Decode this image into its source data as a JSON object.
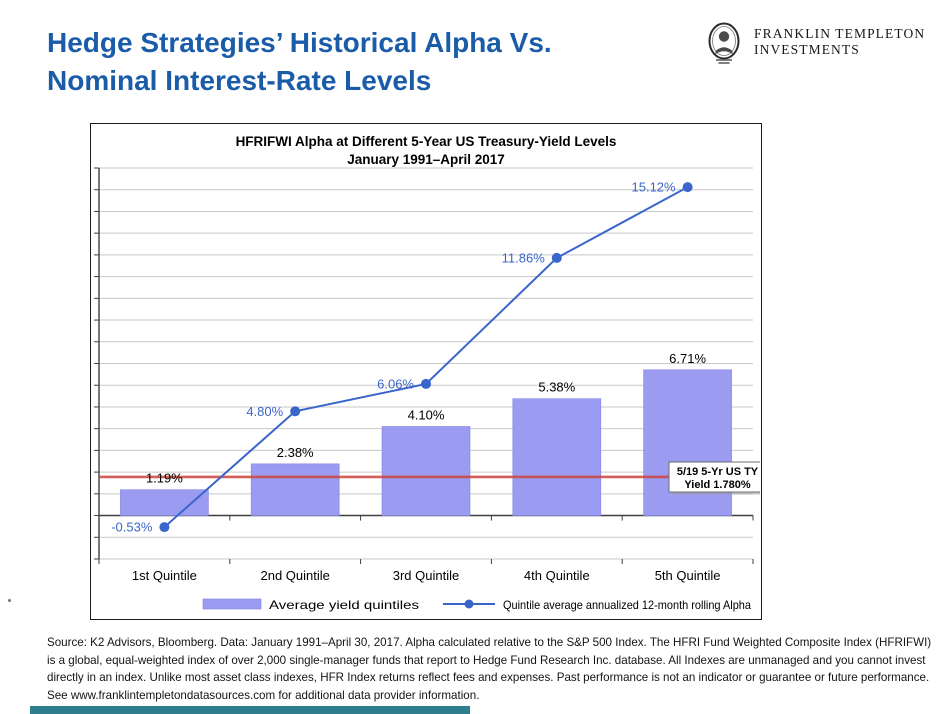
{
  "header": {
    "title_line1": "Hedge Strategies’ Historical Alpha Vs.",
    "title_line2": "Nominal Interest-Rate Levels",
    "logo_line1": "FRANKLIN TEMPLETON",
    "logo_line2": "INVESTMENTS"
  },
  "chart_data": {
    "type": "bar+line combo",
    "title": "HFRIFWI Alpha at Different 5-Year US Treasury-Yield Levels",
    "subtitle": "January 1991–April 2017",
    "categories": [
      "1st Quintile",
      "2nd Quintile",
      "3rd Quintile",
      "4th Quintile",
      "5th Quintile"
    ],
    "series": [
      {
        "name": "Average yield quintiles",
        "type": "bar",
        "color": "#9b9bf2",
        "values": [
          1.19,
          2.38,
          4.1,
          5.38,
          6.71
        ],
        "labels": [
          "1.19%",
          "2.38%",
          "4.10%",
          "5.38%",
          "6.71%"
        ]
      },
      {
        "name": "Quintile average annualized 12-month rolling Alpha",
        "type": "line",
        "color": "#3a66cc",
        "values": [
          -0.53,
          4.8,
          6.06,
          11.86,
          15.12
        ],
        "labels": [
          "-0.53%",
          "4.80%",
          "6.06%",
          "11.86%",
          "15.12%"
        ]
      }
    ],
    "reference_line": {
      "value": 1.78,
      "color": "#ce4a44",
      "label_line1": "5/19 5-Yr US TY",
      "label_line2": "Yield 1.780%"
    },
    "xlabel": "",
    "ylabel": "",
    "ylim": [
      -2,
      16
    ],
    "grid_step": 1,
    "grid": true,
    "legend_position": "bottom",
    "gridline_color": "#c9c9c9",
    "axis_color": "#3f3f3f"
  },
  "footer": {
    "source_text": "Source: K2 Advisors, Bloomberg. Data: January 1991–April 30, 2017. Alpha calculated relative to the S&P 500 Index. The HFRI Fund Weighted Composite Index (HFRIFWI) is a global, equal-weighted index of over 2,000 single-manager funds that report to Hedge Fund Research Inc. database. All Indexes are unmanaged and you cannot invest directly in an index. Unlike most asset class indexes, HFR Index returns reflect fees and expenses. Past performance is not an indicator or guarantee or future performance. See www.franklintempletondatasources.com for additional data provider information."
  },
  "colors": {
    "heading_blue": "#1b5ca8",
    "bar_purple": "#9b9bf2",
    "line_blue": "#3a66cc",
    "reference_red": "#ce4a44",
    "footer_teal": "#2e7e8e"
  }
}
